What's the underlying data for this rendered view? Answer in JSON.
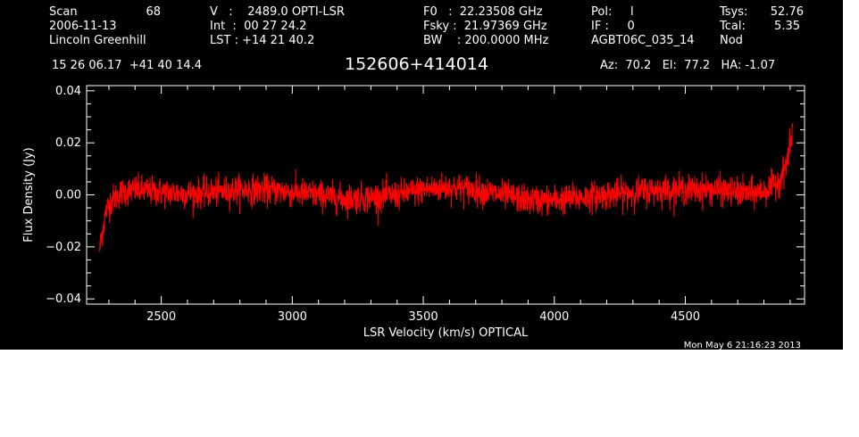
{
  "header": {
    "col1": {
      "scan_label": "Scan",
      "scan_value": "68",
      "date": "2006-11-13",
      "observer": "Lincoln Greenhill"
    },
    "col2": {
      "v_line": "V   :    2489.0 OPTI-LSR",
      "int_line": "Int  :  00 27 24.2",
      "lst_line": "LST : +14 21 40.2"
    },
    "col3": {
      "f0_line": "F0   :  22.23508 GHz",
      "fsky_line": "Fsky :  21.97369 GHz",
      "bw_line": "BW    : 200.0000 MHz"
    },
    "col4": {
      "pol_line": "Pol:     l",
      "if_line": "IF :     0",
      "project": "AGBT06C_035_14"
    },
    "col5": {
      "tsys_label": "Tsys:",
      "tsys_value": "52.76",
      "tcal_label": "Tcal:",
      "tcal_value": "5.35",
      "mode": "Nod"
    },
    "coords": "15 26 06.17  +41 40 14.4",
    "source_name": "152606+414014",
    "pointing": "Az:  70.2   El:  77.2   HA: -1.07"
  },
  "timestamp": "Mon May  6 21:16:23 2013",
  "colors": {
    "background": "#000000",
    "axes": "#ffffff",
    "trace": "#ff0000"
  },
  "chart_data": {
    "type": "line",
    "xlabel": "LSR Velocity (km/s) OPTICAL",
    "ylabel": "Flux Density (Jy)",
    "xlim": [
      2215,
      4955
    ],
    "ylim": [
      -0.042,
      0.042
    ],
    "x_ticks": [
      2500,
      3000,
      3500,
      4000,
      4500
    ],
    "x_tick_labels": [
      "2500",
      "3000",
      "3500",
      "4000",
      "4500"
    ],
    "y_ticks": [
      -0.04,
      -0.02,
      0.0,
      0.02,
      0.04
    ],
    "y_tick_labels": [
      "−0.04",
      "−0.02",
      "0.00",
      "0.02",
      "0.04"
    ],
    "grid": false,
    "series": [
      {
        "color": "#ff0000",
        "x_range": [
          2265,
          4910
        ],
        "envelope": {
          "x": [
            2265,
            2275,
            2290,
            2310,
            2350,
            2400,
            2500,
            2600,
            2700,
            2800,
            2900,
            3000,
            3100,
            3200,
            3300,
            3400,
            3500,
            3600,
            3700,
            3800,
            3900,
            4000,
            4100,
            4200,
            4300,
            4400,
            4500,
            4600,
            4700,
            4750,
            4800,
            4830,
            4860,
            4880,
            4895,
            4905,
            4910
          ],
          "y": [
            -0.021,
            -0.014,
            -0.006,
            -0.002,
            0.001,
            0.002,
            0.001,
            0.0005,
            0.001,
            0.002,
            0.002,
            0.001,
            0.0,
            -0.0015,
            -0.001,
            0.0,
            0.002,
            0.003,
            0.002,
            0.0,
            -0.002,
            -0.002,
            -0.001,
            0.0,
            0.001,
            0.002,
            0.002,
            0.002,
            0.001,
            0.0005,
            0.0015,
            0.003,
            0.006,
            0.01,
            0.016,
            0.022,
            0.026
          ]
        },
        "noise_rms": 0.0028
      }
    ]
  }
}
